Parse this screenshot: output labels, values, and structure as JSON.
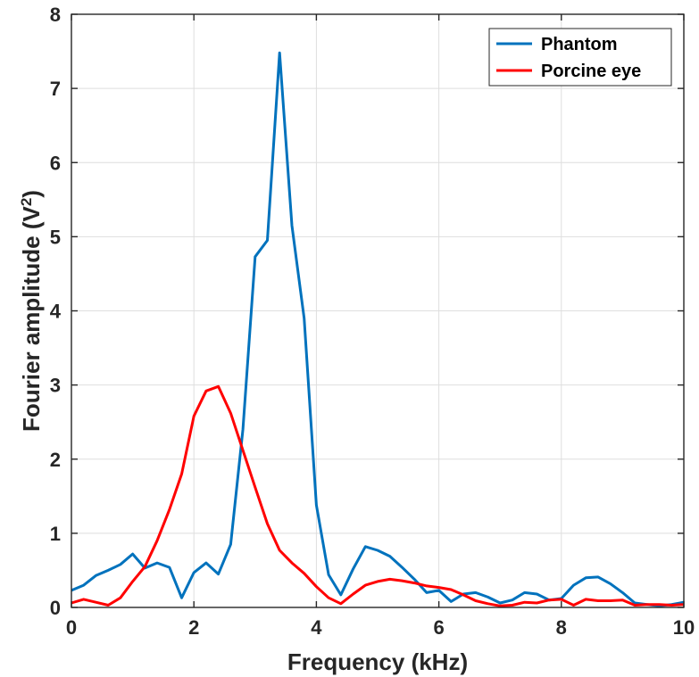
{
  "chart_data": {
    "type": "line",
    "xlabel": "Frequency (kHz)",
    "ylabel_main": "Fourier amplitude (V",
    "ylabel_sup": "2",
    "ylabel_close": ")",
    "xlim": [
      0,
      10
    ],
    "ylim": [
      0,
      8
    ],
    "xticks": [
      0,
      2,
      4,
      6,
      8,
      10
    ],
    "yticks": [
      0,
      1,
      2,
      3,
      4,
      5,
      6,
      7,
      8
    ],
    "grid": true,
    "legend_position": "top-right",
    "series": [
      {
        "name": "Phantom",
        "color": "#0072BD",
        "x": [
          0,
          0.2,
          0.4,
          0.6,
          0.8,
          1.0,
          1.2,
          1.4,
          1.6,
          1.8,
          2.0,
          2.2,
          2.4,
          2.6,
          2.8,
          3.0,
          3.2,
          3.4,
          3.6,
          3.8,
          4.0,
          4.2,
          4.4,
          4.6,
          4.8,
          5.0,
          5.2,
          5.4,
          5.6,
          5.8,
          6.0,
          6.2,
          6.4,
          6.6,
          6.8,
          7.0,
          7.2,
          7.4,
          7.6,
          7.8,
          8.0,
          8.2,
          8.4,
          8.6,
          8.8,
          9.0,
          9.2,
          9.4,
          9.6,
          9.8,
          10.0
        ],
        "y": [
          0.23,
          0.3,
          0.43,
          0.5,
          0.58,
          0.72,
          0.53,
          0.6,
          0.54,
          0.13,
          0.47,
          0.6,
          0.45,
          0.85,
          2.4,
          4.73,
          4.95,
          7.48,
          5.15,
          3.9,
          1.38,
          0.44,
          0.17,
          0.52,
          0.82,
          0.77,
          0.69,
          0.54,
          0.38,
          0.2,
          0.23,
          0.08,
          0.18,
          0.2,
          0.14,
          0.06,
          0.1,
          0.2,
          0.18,
          0.1,
          0.12,
          0.3,
          0.4,
          0.41,
          0.32,
          0.2,
          0.06,
          0.04,
          0.02,
          0.04,
          0.07
        ]
      },
      {
        "name": "Porcine eye",
        "color": "#FF0000",
        "x": [
          0,
          0.2,
          0.4,
          0.6,
          0.8,
          1.0,
          1.2,
          1.4,
          1.6,
          1.8,
          2.0,
          2.2,
          2.4,
          2.6,
          2.8,
          3.0,
          3.2,
          3.4,
          3.6,
          3.8,
          4.0,
          4.2,
          4.4,
          4.6,
          4.8,
          5.0,
          5.2,
          5.4,
          5.6,
          5.8,
          6.0,
          6.2,
          6.4,
          6.6,
          6.8,
          7.0,
          7.2,
          7.4,
          7.6,
          7.8,
          8.0,
          8.2,
          8.4,
          8.6,
          8.8,
          9.0,
          9.2,
          9.4,
          9.6,
          9.8,
          10.0
        ],
        "y": [
          0.06,
          0.11,
          0.07,
          0.03,
          0.13,
          0.35,
          0.55,
          0.9,
          1.32,
          1.8,
          2.58,
          2.92,
          2.98,
          2.62,
          2.12,
          1.62,
          1.13,
          0.77,
          0.6,
          0.46,
          0.28,
          0.13,
          0.05,
          0.18,
          0.3,
          0.35,
          0.38,
          0.36,
          0.33,
          0.29,
          0.27,
          0.24,
          0.17,
          0.09,
          0.05,
          0.02,
          0.03,
          0.07,
          0.06,
          0.1,
          0.11,
          0.03,
          0.11,
          0.09,
          0.09,
          0.1,
          0.03,
          0.04,
          0.04,
          0.03,
          0.04
        ]
      }
    ]
  }
}
